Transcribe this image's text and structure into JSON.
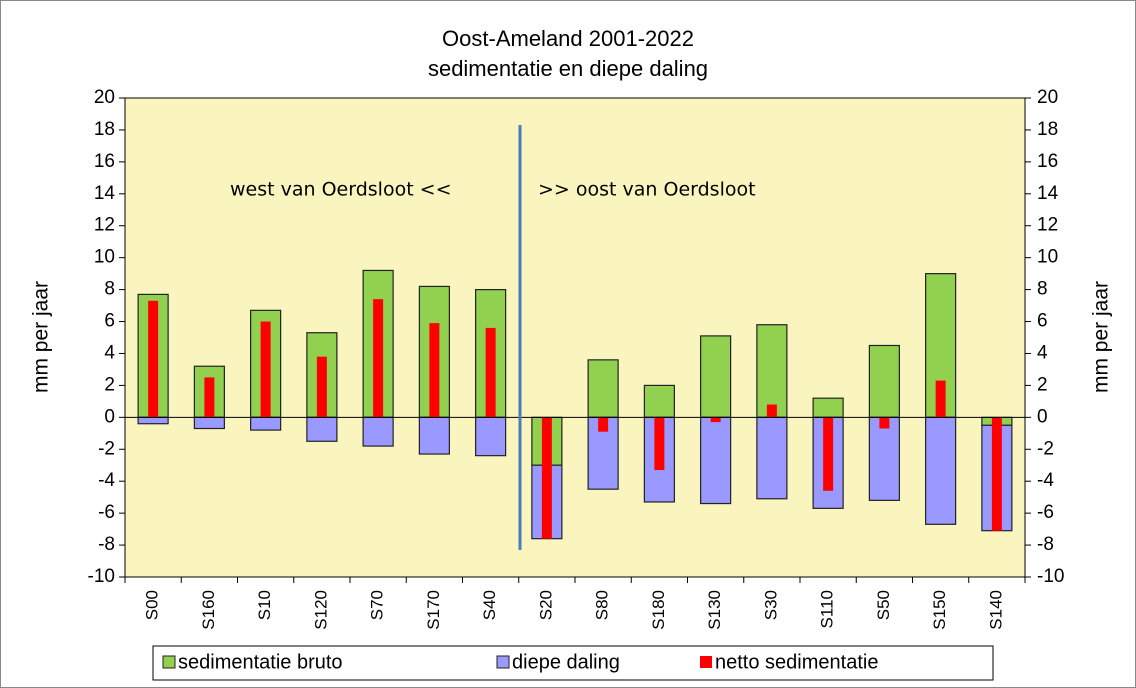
{
  "chart_data": {
    "type": "bar",
    "title": "Oost-Ameland 2001-2022",
    "subtitle": "sedimentatie en diepe daling",
    "y_label": "mm per jaar",
    "y2_label": "mm per jaar",
    "categories": [
      "S00",
      "S160",
      "S10",
      "S120",
      "S70",
      "S170",
      "S40",
      "S20",
      "S80",
      "S180",
      "S130",
      "S30",
      "S110",
      "S50",
      "S150",
      "S140"
    ],
    "series": [
      {
        "name": "sedimentatie bruto",
        "color": "#92d050",
        "stack": true,
        "values": [
          7.7,
          3.2,
          6.7,
          5.3,
          9.2,
          8.2,
          8.0,
          -3.0,
          3.6,
          2.0,
          5.1,
          5.8,
          1.2,
          4.5,
          9.0,
          -0.5
        ]
      },
      {
        "name": "diepe daling",
        "color": "#9999ff",
        "stack": true,
        "values": [
          -0.4,
          -0.7,
          -0.8,
          -1.5,
          -1.8,
          -2.3,
          -2.4,
          -4.6,
          -4.5,
          -5.3,
          -5.4,
          -5.1,
          -5.7,
          -5.2,
          -6.7,
          -6.6
        ]
      },
      {
        "name": "netto sedimentatie",
        "color": "#ff0000",
        "stack": false,
        "values": [
          7.3,
          2.5,
          6.0,
          3.8,
          7.4,
          5.9,
          5.6,
          -7.6,
          -0.9,
          -3.3,
          -0.3,
          0.8,
          -4.6,
          -0.7,
          2.3,
          -7.1
        ]
      }
    ],
    "annotations": [
      "west van Oerdsloot  <<",
      ">>  oost van Oerdsloot"
    ],
    "ylim": [
      -10,
      20
    ],
    "yticks": [
      -10,
      -8,
      -6,
      -4,
      -2,
      0,
      2,
      4,
      6,
      8,
      10,
      12,
      14,
      16,
      18,
      20
    ],
    "y2lim": [
      -10,
      20
    ],
    "y2ticks": [
      -10,
      -8,
      -6,
      -4,
      -2,
      0,
      2,
      4,
      6,
      8,
      10,
      12,
      14,
      16,
      18,
      20
    ],
    "grid": false,
    "legend": "bottom"
  }
}
